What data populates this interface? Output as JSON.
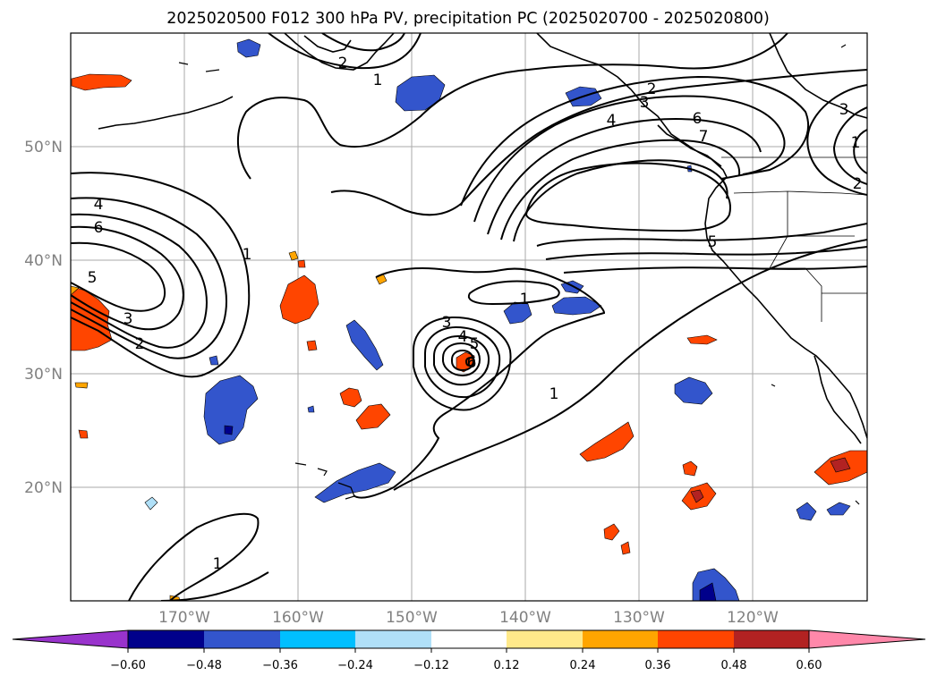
{
  "title": "2025020500 F012 300 hPa PV, precipitation PC (2025020700 - 2025020800)",
  "map": {
    "lon_range": [
      -180,
      -110
    ],
    "lat_range": [
      10,
      60
    ],
    "lat_labels": [
      "50°N",
      "40°N",
      "30°N",
      "20°N"
    ],
    "lon_labels": [
      "170°W",
      "160°W",
      "150°W",
      "140°W",
      "130°W",
      "120°W"
    ],
    "grid": true
  },
  "pv_contour_labels": [
    "2",
    "1",
    "2",
    "3",
    "4",
    "6",
    "7",
    "3",
    "1",
    "2",
    "5",
    "4",
    "6",
    "5",
    "1",
    "3",
    "2",
    "1",
    "3",
    "4",
    "5",
    "6",
    "1",
    "1"
  ],
  "colorbar": {
    "tick_labels": [
      "−0.60",
      "−0.48",
      "−0.36",
      "−0.24",
      "−0.12",
      "0.12",
      "0.24",
      "0.36",
      "0.48",
      "0.60"
    ],
    "colors": [
      "#9933cc",
      "#00008b",
      "#3355cc",
      "#00bfff",
      "#b0e0f8",
      "#ffffff",
      "#ffe98a",
      "#ffa500",
      "#ff4500",
      "#b22222",
      "#ff88aa"
    ],
    "extend": "both"
  }
}
